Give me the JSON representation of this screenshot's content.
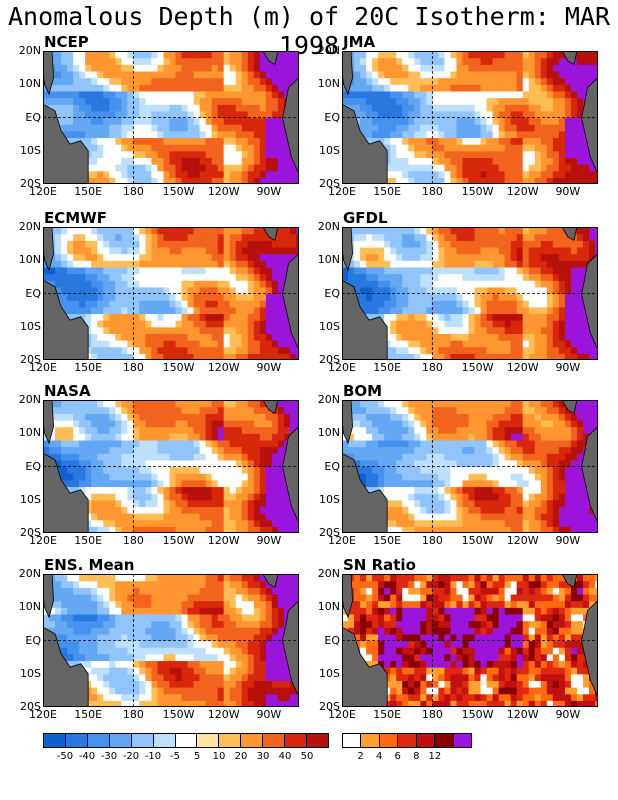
{
  "title": "Anomalous Depth (m) of 20C Isotherm: MAR 1998",
  "chart_data": {
    "type": "heatmap",
    "variable": "20C isotherm depth anomaly",
    "units": "m",
    "x_ticks": [
      "120E",
      "150E",
      "180",
      "150W",
      "120W",
      "90W"
    ],
    "y_ticks": [
      "20N",
      "10N",
      "EQ",
      "10S",
      "20S"
    ],
    "xlim": [
      "120E",
      "70W"
    ],
    "ylim": [
      "20S",
      "20N"
    ],
    "panels": [
      {
        "name": "NCEP",
        "field": "anomaly"
      },
      {
        "name": "JMA",
        "field": "anomaly"
      },
      {
        "name": "ECMWF",
        "field": "anomaly"
      },
      {
        "name": "GFDL",
        "field": "anomaly"
      },
      {
        "name": "NASA",
        "field": "anomaly"
      },
      {
        "name": "BOM",
        "field": "anomaly"
      },
      {
        "name": "ENS. Mean",
        "field": "anomaly"
      },
      {
        "name": "SN Ratio",
        "field": "snr"
      }
    ],
    "anomaly_colorbar": {
      "labels": [
        "-50",
        "-40",
        "-30",
        "-20",
        "-10",
        "-5",
        "5",
        "10",
        "20",
        "30",
        "40",
        "50"
      ],
      "colors": [
        "#1060d0",
        "#2878e0",
        "#4690ee",
        "#64a8f4",
        "#90c4fa",
        "#bde0fc",
        "#ffffff",
        "#ffe6a0",
        "#ffbe55",
        "#ff9630",
        "#f2641e",
        "#d8280c",
        "#b8100a",
        "#8a0000",
        "#9b14dc"
      ]
    },
    "snr_colorbar": {
      "labels": [
        "2",
        "4",
        "6",
        "8",
        "12"
      ],
      "colors": [
        "#ffffff",
        "#ffa030",
        "#ff6a10",
        "#e02810",
        "#c01010",
        "#8a0000",
        "#9b14dc"
      ]
    }
  }
}
